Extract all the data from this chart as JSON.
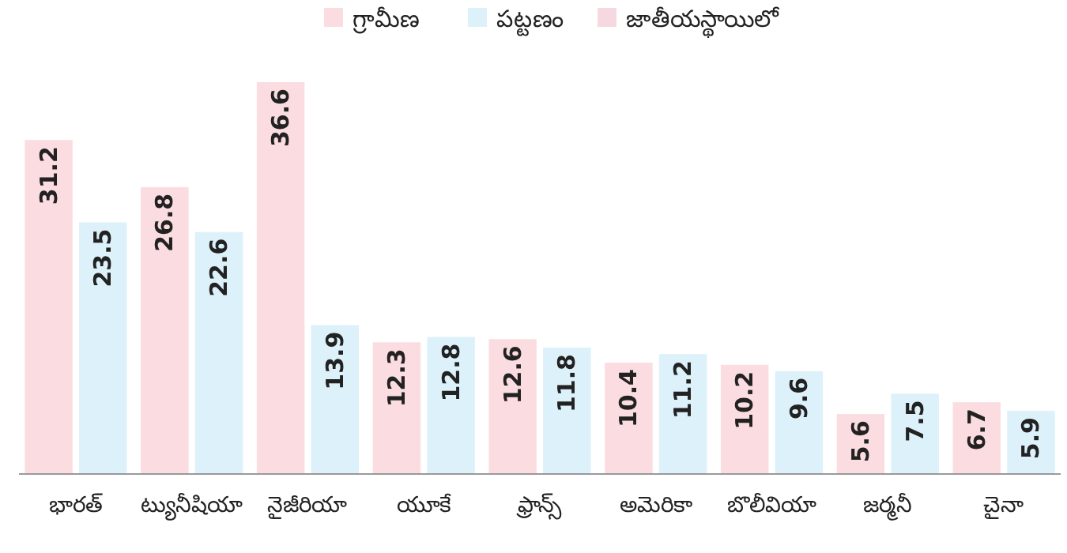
{
  "chart_data": {
    "type": "bar",
    "categories": [
      "భారత్",
      "ట్యునీషియా",
      "నైజీరియా",
      "యూకే",
      "ఫ్రాన్స్",
      "అమెరికా",
      "బొలీవియా",
      "జర్మనీ",
      "చైనా"
    ],
    "series": [
      {
        "name": "గ్రామీణ",
        "color": "#fbdde1",
        "values": [
          31.2,
          26.8,
          36.6,
          12.3,
          12.6,
          10.4,
          10.2,
          5.6,
          6.7
        ]
      },
      {
        "name": "పట్టణం",
        "color": "#dcf1fa",
        "values": [
          23.5,
          22.6,
          13.9,
          12.8,
          11.8,
          11.2,
          9.6,
          7.5,
          5.9
        ]
      },
      {
        "name": "జాతీయస్థాయిలో",
        "color": "#f6d9e0",
        "values": [
          null,
          null,
          null,
          null,
          null,
          null,
          null,
          null,
          null
        ]
      }
    ],
    "data_labels": true,
    "legend": "top right",
    "grid": false
  }
}
